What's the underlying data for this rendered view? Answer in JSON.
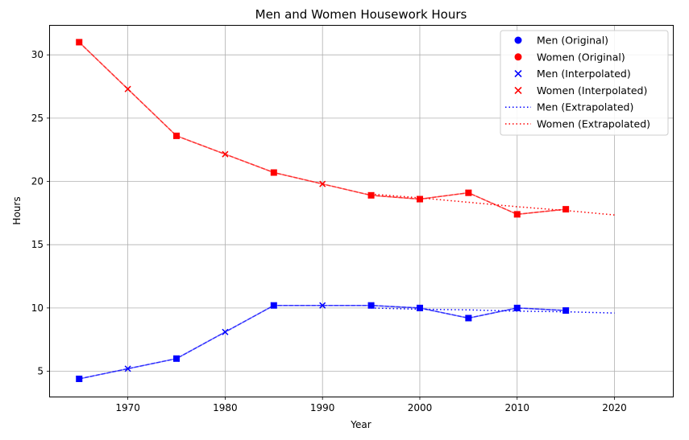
{
  "chart_data": {
    "type": "line",
    "title": "Men and Women Housework Hours",
    "xlabel": "Year",
    "ylabel": "Hours",
    "xlim": [
      1962,
      2026
    ],
    "ylim": [
      3,
      32.3
    ],
    "x_ticks": [
      1970,
      1980,
      1990,
      2000,
      2010,
      2020
    ],
    "y_ticks": [
      5,
      10,
      15,
      20,
      25,
      30
    ],
    "grid": true,
    "legend_position": "top-right",
    "series": [
      {
        "name": "Men (Original)",
        "kind": "original",
        "color": "#0000ff",
        "x": [
          1965,
          1975,
          1985,
          1995,
          2000,
          2005,
          2010,
          2015
        ],
        "y": [
          4.4,
          6.0,
          10.2,
          10.2,
          10.0,
          9.2,
          10.0,
          9.8
        ]
      },
      {
        "name": "Women (Original)",
        "kind": "original",
        "color": "#ff0000",
        "x": [
          1965,
          1975,
          1985,
          1995,
          2000,
          2005,
          2010,
          2015
        ],
        "y": [
          31.0,
          23.6,
          20.7,
          18.9,
          18.6,
          19.1,
          17.4,
          17.8
        ]
      },
      {
        "name": "Men (Interpolated)",
        "kind": "interpolated",
        "color": "#0000ff",
        "x": [
          1965,
          1970,
          1975,
          1980,
          1985,
          1990,
          1995,
          2000,
          2005,
          2010,
          2015
        ],
        "y": [
          4.4,
          5.2,
          6.0,
          8.1,
          10.2,
          10.2,
          10.2,
          10.0,
          9.2,
          10.0,
          9.8
        ]
      },
      {
        "name": "Women (Interpolated)",
        "kind": "interpolated",
        "color": "#ff0000",
        "x": [
          1965,
          1970,
          1975,
          1980,
          1985,
          1990,
          1995,
          2000,
          2005,
          2010,
          2015
        ],
        "y": [
          31.0,
          27.3,
          23.6,
          22.15,
          20.7,
          19.8,
          18.9,
          18.6,
          19.1,
          17.4,
          17.8
        ]
      },
      {
        "name": "Men (Extrapolated)",
        "kind": "extrapolated",
        "color": "#0000ff",
        "x": [
          1995,
          2000,
          2005,
          2010,
          2015,
          2020
        ],
        "y": [
          10.0,
          9.9,
          9.85,
          9.75,
          9.7,
          9.6
        ]
      },
      {
        "name": "Women (Extrapolated)",
        "kind": "extrapolated",
        "color": "#ff0000",
        "x": [
          1995,
          2000,
          2005,
          2010,
          2015,
          2020
        ],
        "y": [
          19.0,
          18.7,
          18.35,
          18.0,
          17.7,
          17.35
        ]
      }
    ]
  }
}
